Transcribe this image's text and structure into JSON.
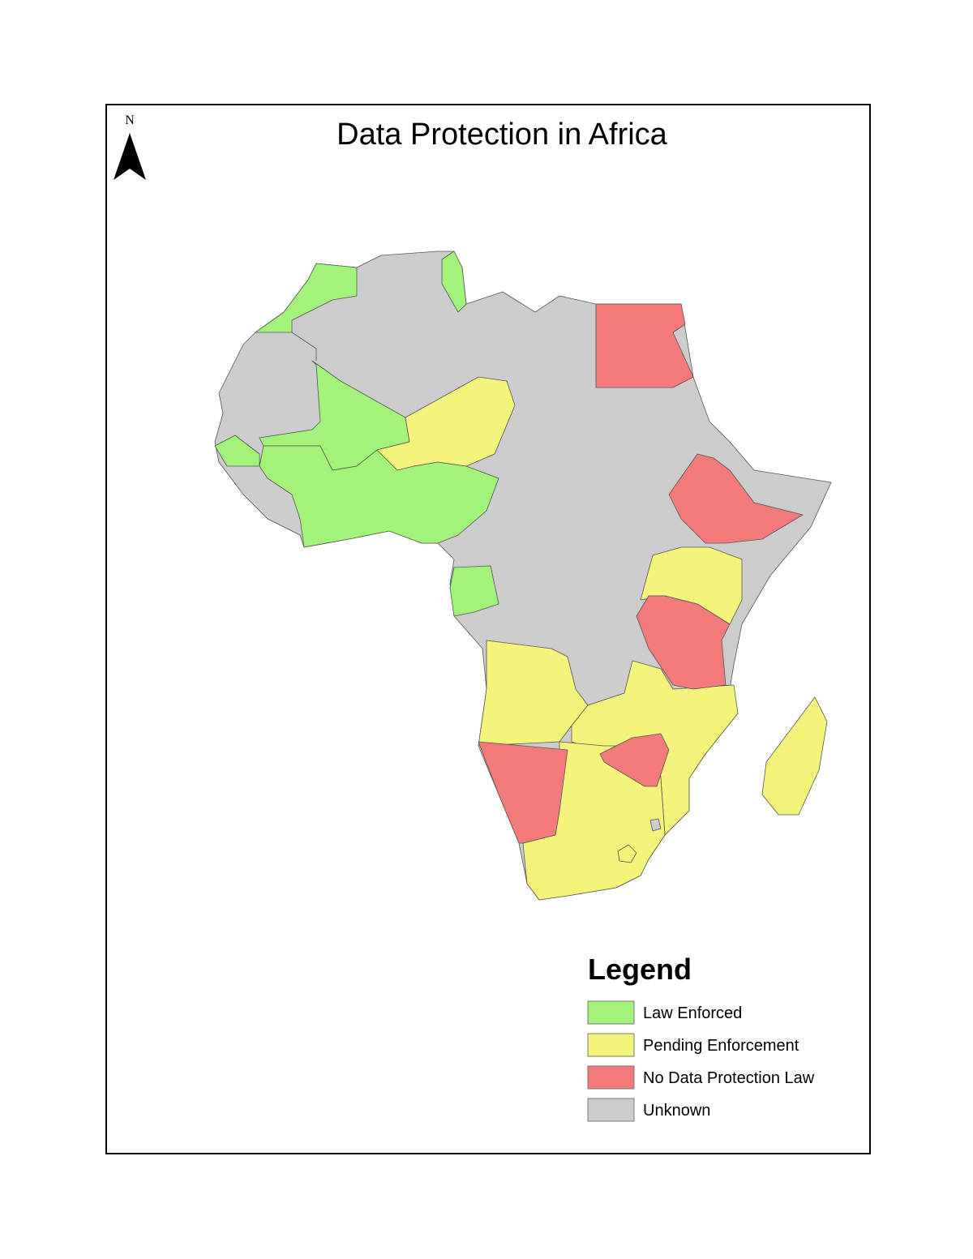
{
  "title": "Data Protection in Africa",
  "north_arrow": "N",
  "legend": {
    "title": "Legend",
    "items": [
      {
        "label": "Law Enforced",
        "color": "#a3f27a"
      },
      {
        "label": "Pending Enforcement",
        "color": "#f4f47a"
      },
      {
        "label": "No Data Protection Law",
        "color": "#f27a7a"
      },
      {
        "label": "Unknown",
        "color": "#cccccc"
      }
    ]
  }
}
